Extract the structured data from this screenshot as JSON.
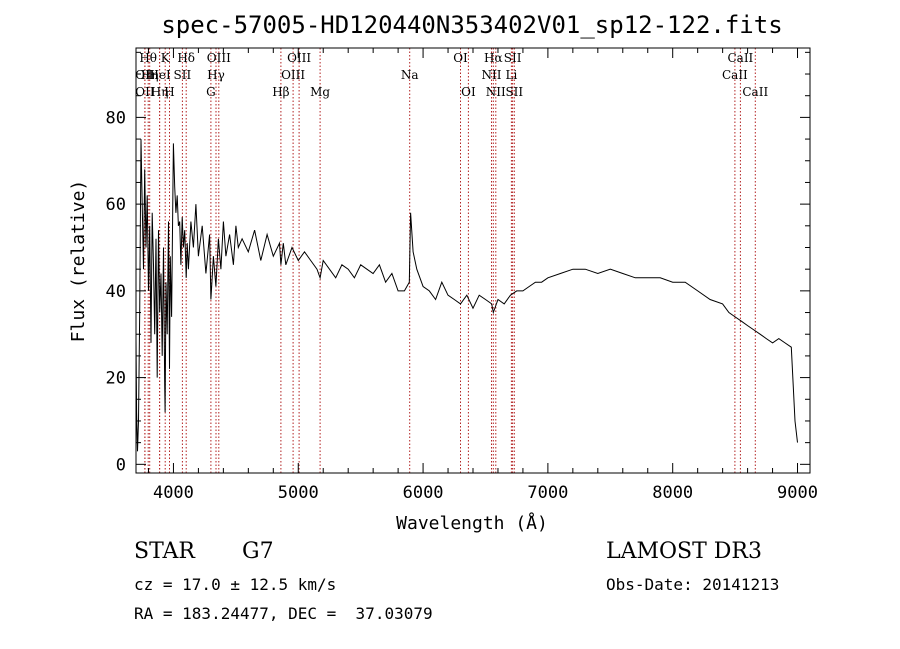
{
  "chart_data": {
    "type": "line",
    "title": "spec-57005-HD120440N353402V01_sp12-122.fits",
    "xlabel": "Wavelength (Å)",
    "ylabel": "Flux (relative)",
    "xlim": [
      3700,
      9100
    ],
    "ylim": [
      -2,
      96
    ],
    "xticks": [
      4000,
      5000,
      6000,
      7000,
      8000,
      9000
    ],
    "yticks": [
      0,
      20,
      40,
      60,
      80
    ],
    "series": [
      {
        "name": "flux",
        "x": [
          3700,
          3705,
          3712,
          3720,
          3730,
          3740,
          3750,
          3760,
          3770,
          3780,
          3790,
          3800,
          3810,
          3820,
          3830,
          3840,
          3850,
          3860,
          3870,
          3880,
          3890,
          3900,
          3910,
          3920,
          3930,
          3933,
          3940,
          3950,
          3960,
          3968,
          3975,
          3985,
          4000,
          4010,
          4020,
          4030,
          4040,
          4050,
          4060,
          4070,
          4080,
          4090,
          4102,
          4110,
          4120,
          4140,
          4160,
          4180,
          4200,
          4230,
          4260,
          4290,
          4300,
          4320,
          4340,
          4360,
          4380,
          4400,
          4420,
          4450,
          4480,
          4500,
          4520,
          4550,
          4600,
          4650,
          4700,
          4750,
          4800,
          4850,
          4861,
          4880,
          4900,
          4950,
          5000,
          5050,
          5100,
          5150,
          5175,
          5200,
          5250,
          5300,
          5350,
          5400,
          5450,
          5500,
          5550,
          5600,
          5650,
          5700,
          5750,
          5800,
          5850,
          5890,
          5900,
          5920,
          5950,
          6000,
          6050,
          6100,
          6150,
          6200,
          6250,
          6300,
          6350,
          6400,
          6450,
          6500,
          6550,
          6563,
          6600,
          6650,
          6700,
          6750,
          6800,
          6850,
          6900,
          6950,
          7000,
          7100,
          7200,
          7300,
          7400,
          7500,
          7600,
          7700,
          7800,
          7900,
          8000,
          8100,
          8200,
          8300,
          8400,
          8450,
          8500,
          8550,
          8600,
          8650,
          8700,
          8750,
          8800,
          8850,
          8900,
          8950,
          8980,
          9000
        ],
        "values": [
          29,
          12,
          3,
          10,
          35,
          75,
          60,
          45,
          68,
          50,
          62,
          40,
          55,
          28,
          58,
          46,
          30,
          52,
          20,
          54,
          35,
          44,
          25,
          50,
          18,
          12,
          42,
          30,
          56,
          22,
          48,
          34,
          74,
          64,
          58,
          62,
          55,
          56,
          46,
          57,
          50,
          54,
          43,
          51,
          45,
          56,
          50,
          60,
          48,
          55,
          44,
          53,
          38,
          48,
          41,
          52,
          45,
          56,
          48,
          53,
          46,
          55,
          50,
          52,
          49,
          54,
          47,
          53,
          48,
          51,
          46,
          51,
          46,
          50,
          47,
          49,
          47,
          45,
          43,
          47,
          45,
          43,
          46,
          45,
          43,
          46,
          45,
          44,
          46,
          42,
          44,
          40,
          40,
          42,
          58,
          49,
          45,
          41,
          40,
          38,
          42,
          39,
          38,
          37,
          39,
          36,
          39,
          38,
          37,
          35,
          38,
          37,
          39,
          40,
          40,
          41,
          42,
          42,
          43,
          44,
          45,
          45,
          44,
          45,
          44,
          43,
          43,
          43,
          42,
          42,
          40,
          38,
          37,
          35,
          34,
          33,
          32,
          31,
          30,
          29,
          28,
          29,
          28,
          27,
          10,
          5
        ]
      }
    ],
    "annotations": [
      {
        "wavelength": 3771,
        "row": 1,
        "label": "OII"
      },
      {
        "wavelength": 3771,
        "row": 2,
        "label": "OII"
      },
      {
        "wavelength": 3798,
        "row": 0,
        "label": "Hθ"
      },
      {
        "wavelength": 3810,
        "row": 1,
        "label": "Hη"
      },
      {
        "wavelength": 3889,
        "row": 1,
        "label": "HeI"
      },
      {
        "wavelength": 3889,
        "row": 2,
        "label": "Hη"
      },
      {
        "wavelength": 3934,
        "row": 0,
        "label": "K"
      },
      {
        "wavelength": 3968,
        "row": 2,
        "label": "H"
      },
      {
        "wavelength": 4072,
        "row": 1,
        "label": "SII"
      },
      {
        "wavelength": 4102,
        "row": 0,
        "label": "Hδ"
      },
      {
        "wavelength": 4300,
        "row": 2,
        "label": "G"
      },
      {
        "wavelength": 4341,
        "row": 1,
        "label": "Hγ"
      },
      {
        "wavelength": 4363,
        "row": 0,
        "label": "OIII"
      },
      {
        "wavelength": 4861,
        "row": 2,
        "label": "Hβ"
      },
      {
        "wavelength": 4959,
        "row": 1,
        "label": "OIII"
      },
      {
        "wavelength": 5007,
        "row": 0,
        "label": "OIII"
      },
      {
        "wavelength": 5175,
        "row": 2,
        "label": "Mg"
      },
      {
        "wavelength": 5893,
        "row": 1,
        "label": "Na"
      },
      {
        "wavelength": 6300,
        "row": 0,
        "label": "OI"
      },
      {
        "wavelength": 6363,
        "row": 2,
        "label": "OI"
      },
      {
        "wavelength": 6548,
        "row": 1,
        "label": "NII"
      },
      {
        "wavelength": 6563,
        "row": 0,
        "label": "Hα"
      },
      {
        "wavelength": 6583,
        "row": 2,
        "label": "NII"
      },
      {
        "wavelength": 6708,
        "row": 1,
        "label": "Li"
      },
      {
        "wavelength": 6717,
        "row": 0,
        "label": "SII"
      },
      {
        "wavelength": 6731,
        "row": 2,
        "label": "SII"
      },
      {
        "wavelength": 8498,
        "row": 1,
        "label": "CaII"
      },
      {
        "wavelength": 8542,
        "row": 0,
        "label": "CaII"
      },
      {
        "wavelength": 8662,
        "row": 2,
        "label": "CaII"
      }
    ]
  },
  "info": {
    "object_class": "STAR",
    "subclass": "G7",
    "survey": "LAMOST DR3",
    "cz": "cz = 17.0 ± 12.5 km/s",
    "obs_date": "Obs-Date: 20141213",
    "coords": "RA = 183.24477, DEC =  37.03079"
  },
  "colors": {
    "line": "#000000",
    "marker": "#b22222"
  }
}
